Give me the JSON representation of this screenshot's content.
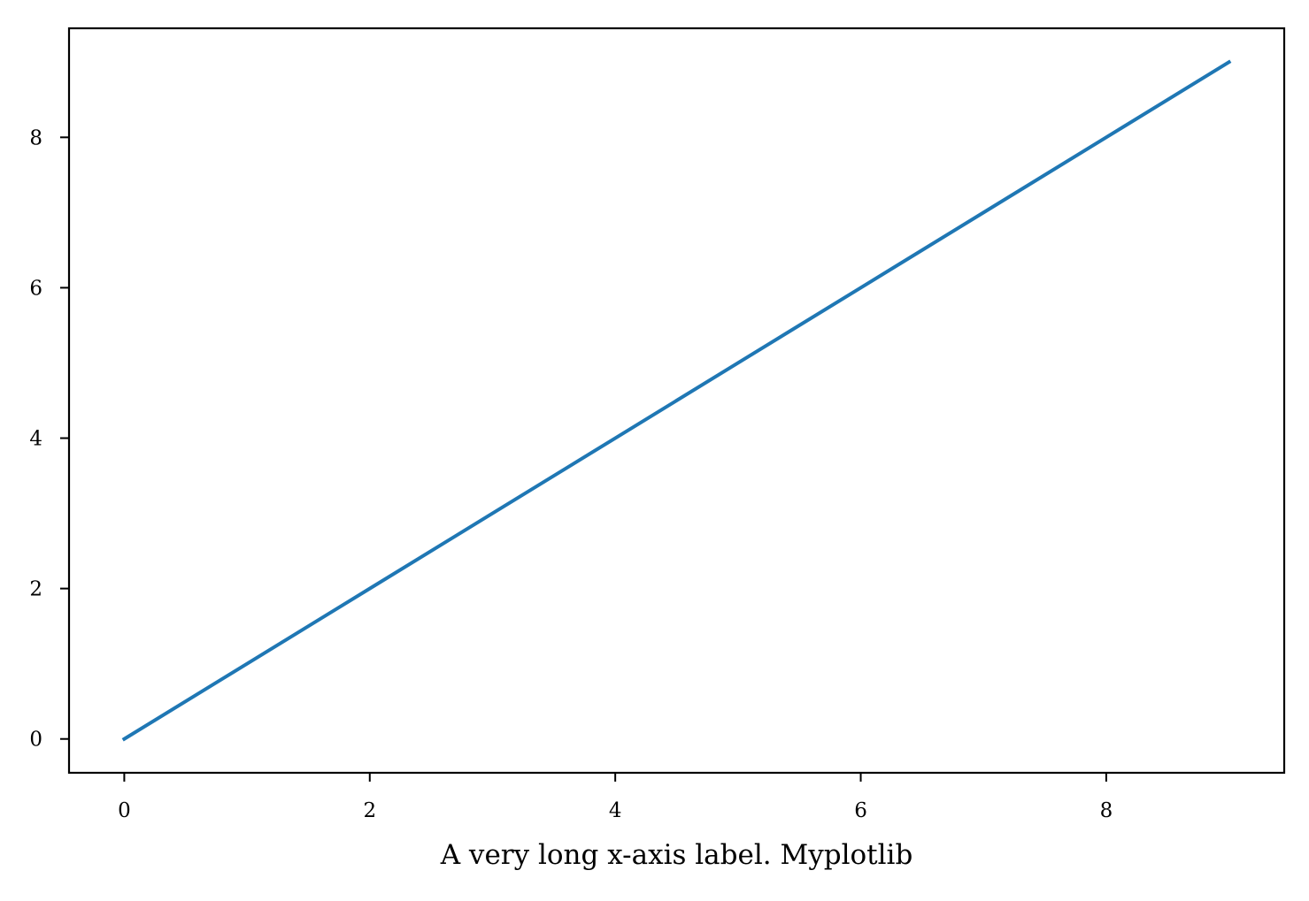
{
  "chart_data": {
    "type": "line",
    "title": "",
    "xlabel": "A very long x-axis label. Myplotlib",
    "ylabel": "",
    "x": [
      0,
      1,
      2,
      3,
      4,
      5,
      6,
      7,
      8,
      9
    ],
    "series": [
      {
        "values": [
          0,
          1,
          2,
          3,
          4,
          5,
          6,
          7,
          8,
          9
        ],
        "color": "#1f77b4"
      }
    ],
    "xlim": [
      -0.45,
      9.45
    ],
    "ylim": [
      -0.45,
      9.45
    ],
    "xticks": [
      0,
      2,
      4,
      6,
      8
    ],
    "yticks": [
      0,
      2,
      4,
      6,
      8
    ],
    "xtick_labels": [
      "0",
      "2",
      "4",
      "6",
      "8"
    ],
    "ytick_labels": [
      "0",
      "2",
      "4",
      "6",
      "8"
    ],
    "grid": false,
    "legend": "none"
  }
}
